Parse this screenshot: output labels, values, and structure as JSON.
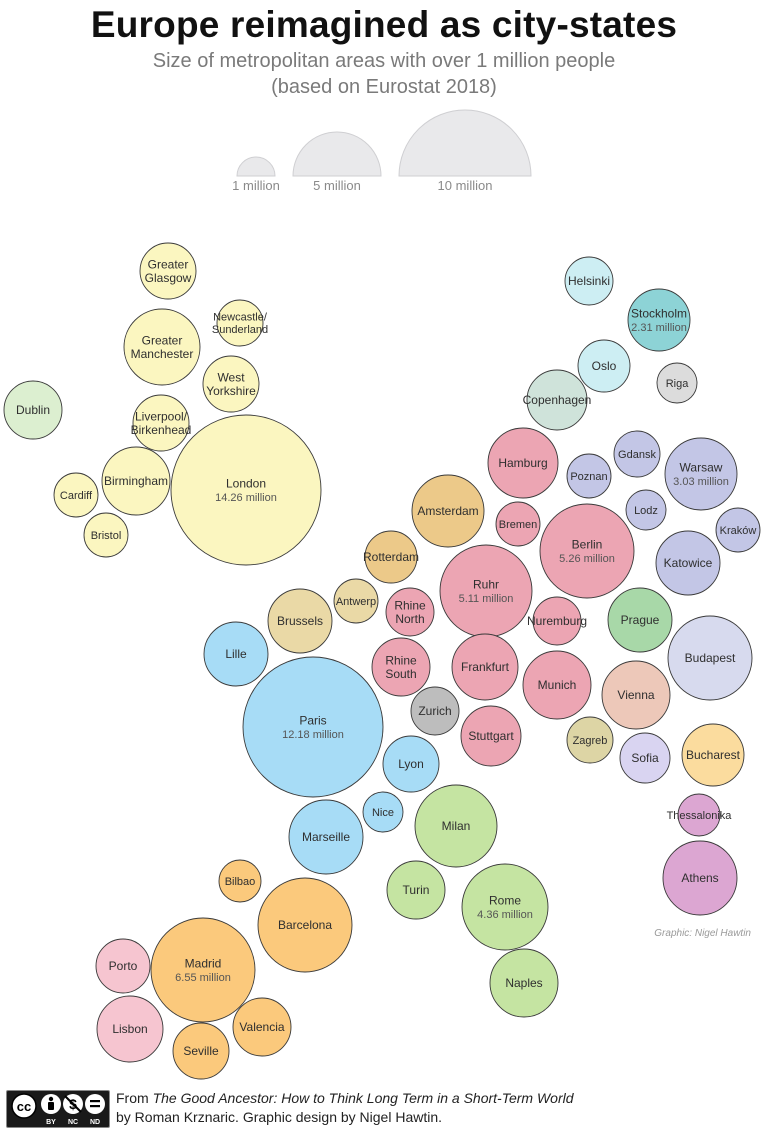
{
  "title": "Europe reimagined as city-states",
  "subtitle_line1": "Size of metropolitan areas with over 1 million people",
  "subtitle_line2": "(based on Eurostat 2018)",
  "legend": [
    {
      "label": "1 million",
      "value_millions": 1
    },
    {
      "label": "5 million",
      "value_millions": 5
    },
    {
      "label": "10 million",
      "value_millions": 10
    }
  ],
  "graphic_credit": "Graphic: Nigel Hawtin",
  "source": {
    "from": "From ",
    "book": "The Good Ancestor: How to Think Long Term in a Short-Term World",
    "rest": " by Roman Krznaric. Graphic design by Nigel Hawtin."
  },
  "license": {
    "badge": "cc",
    "parts": [
      "BY",
      "NC",
      "ND"
    ]
  },
  "colors": {
    "uk": "#fbf6c0",
    "ireland": "#dcefd0",
    "nordic": "#cdeef3",
    "stockholm": "#8dd3d6",
    "copenhagen": "#cfe3da",
    "riga": "#dcdcdc",
    "poland": "#c3c6e6",
    "germany": "#eca5b3",
    "netherlands": "#ecc989",
    "belgium": "#ead9a6",
    "france": "#a7dcf6",
    "switzerland": "#bdbdbd",
    "austria": "#edc8b9",
    "czech": "#a8d8a8",
    "hungary": "#d7daee",
    "croatia": "#ddd5a5",
    "bulgaria": "#d9d4f1",
    "romania": "#fbdc9e",
    "greece": "#dca6d2",
    "italy": "#c5e4a2",
    "spain": "#fbc97c",
    "portugal": "#f6c5d0"
  },
  "chart_data": {
    "type": "bubble",
    "unit": "million people",
    "cities": [
      {
        "name": "Greater Glasgow",
        "color": "uk"
      },
      {
        "name": "Greater Manchester",
        "color": "uk"
      },
      {
        "name": "Newcastle/ Sunderland",
        "color": "uk"
      },
      {
        "name": "West Yorkshire",
        "color": "uk"
      },
      {
        "name": "Liverpool/ Birkenhead",
        "color": "uk"
      },
      {
        "name": "London",
        "value_label": "14.26 million",
        "value": 14.26,
        "color": "uk"
      },
      {
        "name": "Birmingham",
        "color": "uk"
      },
      {
        "name": "Cardiff",
        "color": "uk"
      },
      {
        "name": "Bristol",
        "color": "uk"
      },
      {
        "name": "Dublin",
        "color": "ireland"
      },
      {
        "name": "Helsinki",
        "color": "nordic"
      },
      {
        "name": "Stockholm",
        "value_label": "2.31 million",
        "value": 2.31,
        "color": "stockholm"
      },
      {
        "name": "Oslo",
        "color": "nordic"
      },
      {
        "name": "Copenhagen",
        "color": "copenhagen"
      },
      {
        "name": "Riga",
        "color": "riga"
      },
      {
        "name": "Gdansk",
        "color": "poland"
      },
      {
        "name": "Warsaw",
        "value_label": "3.03 million",
        "value": 3.03,
        "color": "poland"
      },
      {
        "name": "Poznan",
        "color": "poland"
      },
      {
        "name": "Lodz",
        "color": "poland"
      },
      {
        "name": "Kraków",
        "color": "poland"
      },
      {
        "name": "Katowice",
        "color": "poland"
      },
      {
        "name": "Hamburg",
        "color": "germany"
      },
      {
        "name": "Bremen",
        "color": "germany"
      },
      {
        "name": "Berlin",
        "value_label": "5.26 million",
        "value": 5.26,
        "color": "germany"
      },
      {
        "name": "Amsterdam",
        "color": "netherlands"
      },
      {
        "name": "Rotterdam",
        "color": "netherlands"
      },
      {
        "name": "Ruhr",
        "value_label": "5.11 million",
        "value": 5.11,
        "color": "germany"
      },
      {
        "name": "Antwerp",
        "color": "belgium"
      },
      {
        "name": "Brussels",
        "color": "belgium"
      },
      {
        "name": "Rhine North",
        "color": "germany"
      },
      {
        "name": "Nuremburg",
        "color": "germany"
      },
      {
        "name": "Prague",
        "color": "czech"
      },
      {
        "name": "Lille",
        "color": "france"
      },
      {
        "name": "Rhine South",
        "color": "germany"
      },
      {
        "name": "Frankfurt",
        "color": "germany"
      },
      {
        "name": "Munich",
        "color": "germany"
      },
      {
        "name": "Budapest",
        "color": "hungary"
      },
      {
        "name": "Vienna",
        "color": "austria"
      },
      {
        "name": "Paris",
        "value_label": "12.18 million",
        "value": 12.18,
        "color": "france"
      },
      {
        "name": "Zurich",
        "color": "switzerland"
      },
      {
        "name": "Stuttgart",
        "color": "germany"
      },
      {
        "name": "Zagreb",
        "color": "croatia"
      },
      {
        "name": "Sofia",
        "color": "bulgaria"
      },
      {
        "name": "Bucharest",
        "color": "romania"
      },
      {
        "name": "Lyon",
        "color": "france"
      },
      {
        "name": "Nice",
        "color": "france"
      },
      {
        "name": "Milan",
        "color": "italy"
      },
      {
        "name": "Marseille",
        "color": "france"
      },
      {
        "name": "Thessalonika",
        "color": "greece"
      },
      {
        "name": "Athens",
        "color": "greece"
      },
      {
        "name": "Bilbao",
        "color": "spain"
      },
      {
        "name": "Turin",
        "color": "italy"
      },
      {
        "name": "Rome",
        "value_label": "4.36 million",
        "value": 4.36,
        "color": "italy"
      },
      {
        "name": "Barcelona",
        "color": "spain"
      },
      {
        "name": "Madrid",
        "value_label": "6.55 million",
        "value": 6.55,
        "color": "spain"
      },
      {
        "name": "Porto",
        "color": "portugal"
      },
      {
        "name": "Naples",
        "color": "italy"
      },
      {
        "name": "Lisbon",
        "color": "portugal"
      },
      {
        "name": "Valencia",
        "color": "spain"
      },
      {
        "name": "Seville",
        "color": "spain"
      }
    ]
  }
}
